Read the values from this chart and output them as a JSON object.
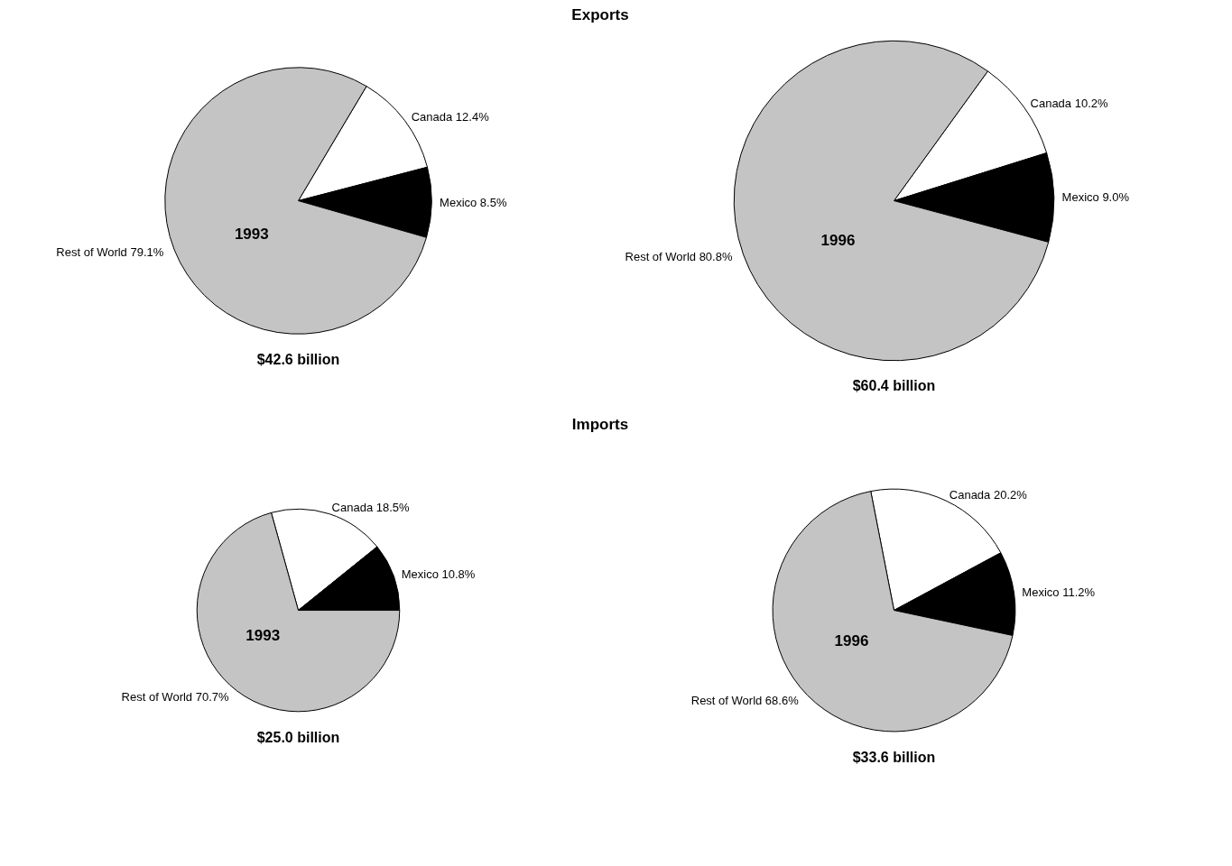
{
  "chart_data": [
    {
      "type": "pie",
      "title": "Exports",
      "categories": [
        "Canada",
        "Mexico",
        "Rest of World"
      ],
      "values": [
        12.4,
        8.5,
        79.1
      ],
      "value_labels": [
        "12.4%",
        "8.5%",
        "79.1%"
      ],
      "colors": [
        "#ffffff",
        "#000000",
        "#c4c4c4"
      ],
      "annotations": [
        "1993"
      ],
      "xlabel": "$42.6 billion"
    },
    {
      "type": "pie",
      "categories": [
        "Canada",
        "Mexico",
        "Rest of World"
      ],
      "values": [
        10.2,
        9.0,
        80.8
      ],
      "value_labels": [
        "10.2%",
        "9.0%",
        "80.8%"
      ],
      "colors": [
        "#ffffff",
        "#000000",
        "#c4c4c4"
      ],
      "annotations": [
        "1996"
      ],
      "xlabel": "$60.4 billion"
    },
    {
      "type": "pie",
      "title": "Imports",
      "categories": [
        "Canada",
        "Mexico",
        "Rest of World"
      ],
      "values": [
        18.5,
        10.8,
        70.7
      ],
      "value_labels": [
        "18.5%",
        "10.8%",
        "70.7%"
      ],
      "colors": [
        "#ffffff",
        "#000000",
        "#c4c4c4"
      ],
      "annotations": [
        "1993"
      ],
      "xlabel": "$25.0 billion"
    },
    {
      "type": "pie",
      "categories": [
        "Canada",
        "Mexico",
        "Rest of World"
      ],
      "values": [
        20.2,
        11.2,
        68.6
      ],
      "value_labels": [
        "20.2%",
        "11.2%",
        "68.6%"
      ],
      "colors": [
        "#ffffff",
        "#000000",
        "#c4c4c4"
      ],
      "annotations": [
        "1996"
      ],
      "xlabel": "$33.6 billion"
    }
  ]
}
